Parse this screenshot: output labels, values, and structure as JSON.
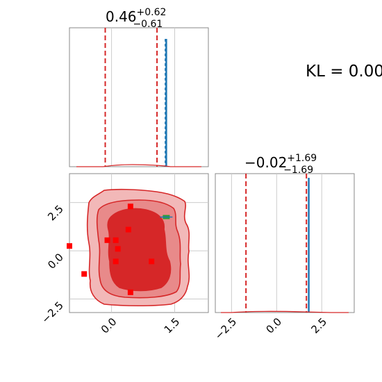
{
  "chart_data": {
    "type": "corner",
    "kl_text": "KL = 0.00",
    "panels": {
      "hist_x": {
        "title": {
          "main": "0.46",
          "sup": "+0.62",
          "sub": "−0.61"
        },
        "xlim": [
          -1.0,
          2.3
        ],
        "reference_lines_red_dashed": [
          -0.15,
          1.08
        ],
        "reference_line_blue": 1.3,
        "xgrid": [
          0.0,
          1.5
        ]
      },
      "hist_y": {
        "title": {
          "main": "−0.02",
          "sup": "+1.69",
          "sub": "−1.69"
        },
        "xlim": [
          -3.4,
          4.3
        ],
        "xticks": [
          -2.5,
          0.0,
          2.5
        ],
        "xtick_labels": [
          "−2.5",
          "0.0",
          "2.5"
        ],
        "reference_lines_red_dashed": [
          -1.7,
          1.65
        ],
        "reference_line_blue": 1.78
      },
      "joint": {
        "xlim": [
          -1.0,
          2.3
        ],
        "ylim": [
          -3.2,
          4.0
        ],
        "xticks": [
          0.0,
          1.5
        ],
        "xtick_labels": [
          "0.0",
          "1.5"
        ],
        "yticks": [
          2.5,
          0.0,
          -2.5
        ],
        "ytick_labels": [
          "2.5",
          "0.0",
          "−2.5"
        ],
        "true_point": {
          "x": 1.3,
          "y": 1.75,
          "color": "#2a9d3a"
        },
        "red_squares": [
          [
            0.45,
            2.3
          ],
          [
            0.4,
            1.1
          ],
          [
            -0.1,
            0.55
          ],
          [
            0.1,
            0.55
          ],
          [
            0.15,
            0.1
          ],
          [
            0.1,
            -0.55
          ],
          [
            0.95,
            -0.55
          ],
          [
            -0.65,
            -1.2
          ],
          [
            0.45,
            -2.15
          ],
          [
            -1.0,
            0.25
          ]
        ]
      }
    },
    "colors": {
      "red": "#d62728",
      "blue": "#1f77b4",
      "green": "#2a9d3a",
      "grid": "#cccccc"
    }
  }
}
